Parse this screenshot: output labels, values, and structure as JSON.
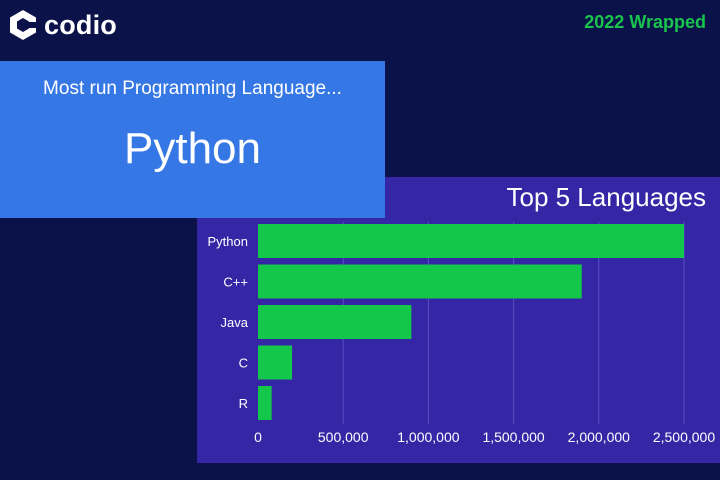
{
  "header": {
    "logo_text": "codio",
    "tagline": "2022 Wrapped"
  },
  "highlight": {
    "subtitle": "Most run Programming Language...",
    "language": "Python"
  },
  "colors": {
    "background": "#0b124a",
    "highlight_panel": "#3578e5",
    "chart_panel": "#3526a6",
    "bar": "#12c74a",
    "tagline": "#18c44b"
  },
  "chart_data": {
    "type": "bar",
    "orientation": "horizontal",
    "title": "Top 5 Languages",
    "categories": [
      "Python",
      "C++",
      "Java",
      "C",
      "R"
    ],
    "values": [
      2500000,
      1900000,
      900000,
      200000,
      80000
    ],
    "xlim": [
      0,
      2500000
    ],
    "xticks": [
      0,
      500000,
      1000000,
      1500000,
      2000000,
      2500000
    ],
    "xtick_labels": [
      "0",
      "500,000",
      "1,000,000",
      "1,500,000",
      "2,000,000",
      "2,500,000"
    ],
    "grid": true,
    "xlabel": "",
    "ylabel": ""
  }
}
